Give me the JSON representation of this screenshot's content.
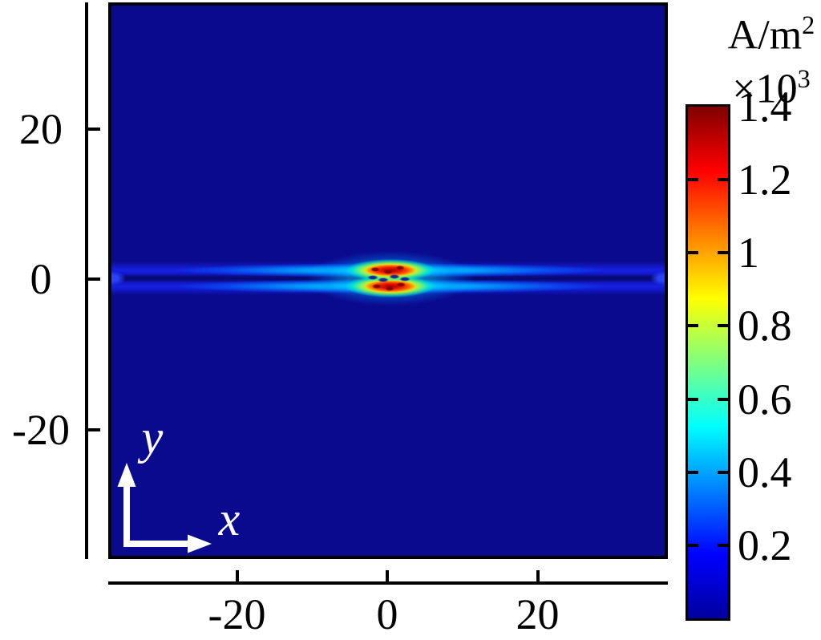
{
  "figure": {
    "colorbar": {
      "unit": "A/m",
      "unit_sup": "2",
      "scale": "×10",
      "scale_sup": "3",
      "min_value": 0,
      "max_value": 1.4,
      "ticks": [
        {
          "label": "1.4",
          "value": 1.4,
          "mark": false
        },
        {
          "label": "1.2",
          "value": 1.2,
          "mark": true
        },
        {
          "label": "1",
          "value": 1.0,
          "mark": true
        },
        {
          "label": "0.8",
          "value": 0.8,
          "mark": true
        },
        {
          "label": "0.6",
          "value": 0.6,
          "mark": true
        },
        {
          "label": "0.4",
          "value": 0.4,
          "mark": true
        },
        {
          "label": "0.2",
          "value": 0.2,
          "mark": true
        }
      ],
      "jet_stops": [
        "#0000a0",
        "#0000ff",
        "#00ffff",
        "#ffff00",
        "#ff0000",
        "#800000"
      ]
    },
    "y_axis": {
      "ticks": [
        {
          "label": "20",
          "value": 20
        },
        {
          "label": "0",
          "value": 0
        },
        {
          "label": "-20",
          "value": -20
        }
      ]
    },
    "x_axis": {
      "ticks": [
        {
          "label": "-20",
          "value": -20
        },
        {
          "label": "0",
          "value": 0
        },
        {
          "label": "20",
          "value": 20
        }
      ]
    },
    "arrows": {
      "x_label": "x",
      "y_label": "y"
    },
    "colors": {
      "field_background": "#0a0a8f",
      "arrow_color": "#ffffff"
    }
  },
  "chart_data": {
    "type": "heatmap",
    "title": "",
    "xlabel": "x",
    "ylabel": "y",
    "x_range": [
      -37,
      37
    ],
    "y_range": [
      -37,
      37
    ],
    "x_ticks": [
      -20,
      0,
      20
    ],
    "y_ticks": [
      20,
      0,
      -20
    ],
    "grid": false,
    "colormap": "jet",
    "legend_position": "right-colorbar",
    "colorbar": {
      "unit": "A/m^2",
      "multiplier": "x10^3",
      "range": [
        0,
        1.4
      ],
      "ticks": [
        0.2,
        0.4,
        0.6,
        0.8,
        1,
        1.2,
        1.4
      ]
    },
    "field_description": "Surface current density magnitude on a uniform dark-blue background (~0 A/m^2). Two thin horizontal bright sheets at y ~ +1 and y ~ -1 span the full x range, brightest (cyan) near the centre and dimming to blue toward both edges, with tiny bright pinch points at the left and right edges near y = 0. Around x = 0 the sheets intensify into two speckled red-orange hot-spot lobes (|x| < ~4) reaching ~1.4x10^3 A/m^2, separated by a low-density gap with dark diagonal slashes along y = 0.",
    "hot_spots": [
      {
        "x": 0,
        "y": 1,
        "peak_value_A_per_m2": 1400
      },
      {
        "x": 0,
        "y": -1,
        "peak_value_A_per_m2": 1300
      }
    ]
  }
}
